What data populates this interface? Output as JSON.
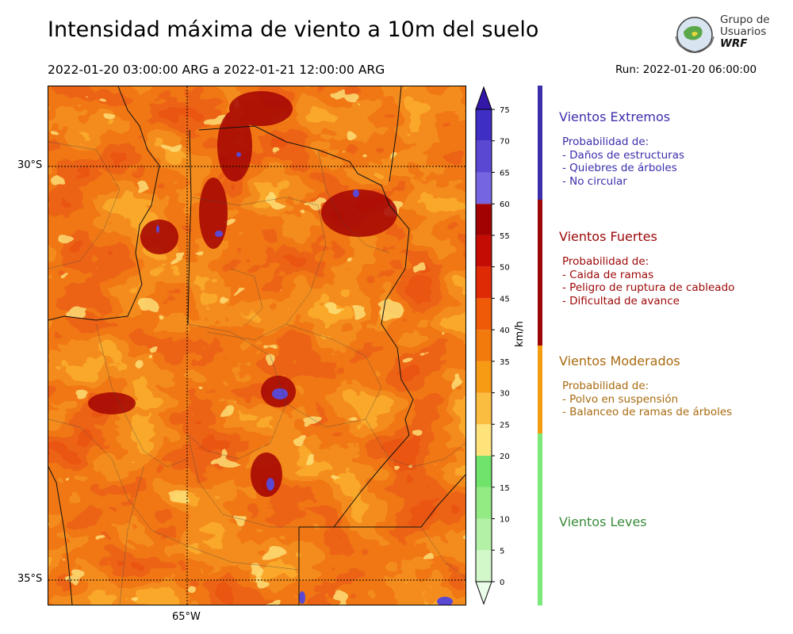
{
  "title": "Intensidad máxima de viento a 10m del suelo",
  "subtitle": "2022-01-20 03:00:00 ARG  a  2022-01-21 12:00:00 ARG",
  "run": "Run: 2022-01-20 06:00:00",
  "logo": {
    "line1": "Grupo de",
    "line2": "Usuarios",
    "line3": "WRF"
  },
  "map": {
    "lat_labels": [
      "30°S",
      "35°S"
    ],
    "lon_labels": [
      "65°W"
    ]
  },
  "colorbar": {
    "unit": "km/h",
    "ticks": [
      "0",
      "5",
      "10",
      "15",
      "20",
      "25",
      "30",
      "35",
      "40",
      "45",
      "50",
      "55",
      "60",
      "65",
      "70",
      "75",
      "80"
    ],
    "colors": [
      "#eafde8",
      "#d2f8ca",
      "#b3f1a6",
      "#93eb84",
      "#6fe36a",
      "#fee27a",
      "#fbbd3f",
      "#f79a14",
      "#f27a0d",
      "#ee5a08",
      "#df2a06",
      "#c50c04",
      "#a30202",
      "#7665e0",
      "#5a48d2",
      "#3f2ec4",
      "#3317a8"
    ]
  },
  "categories": [
    {
      "title": "Vientos Extremos",
      "color": "#3a2eab",
      "lines": [
        "Probabilidad de:",
        "- Daños de estructuras",
        "- Quiebres de árboles",
        "- No circular"
      ]
    },
    {
      "title": "Vientos Fuertes",
      "color": "#9c0606",
      "lines": [
        "Probabilidad de:",
        "- Caida de ramas",
        "- Peligro de ruptura de cableado",
        "- Dificultad de avance"
      ]
    },
    {
      "title": "Vientos Moderados",
      "color": "#a86a10",
      "lines": [
        "Probabilidad de:",
        "- Polvo en suspensión",
        "- Balanceo de ramas de árboles"
      ]
    },
    {
      "title": "Vientos Leves",
      "color": "#3a8a3a",
      "lines": []
    }
  ],
  "category_bar_colors": [
    "#3a2eab",
    "#9c0606",
    "#f59d12",
    "#7be87a"
  ]
}
